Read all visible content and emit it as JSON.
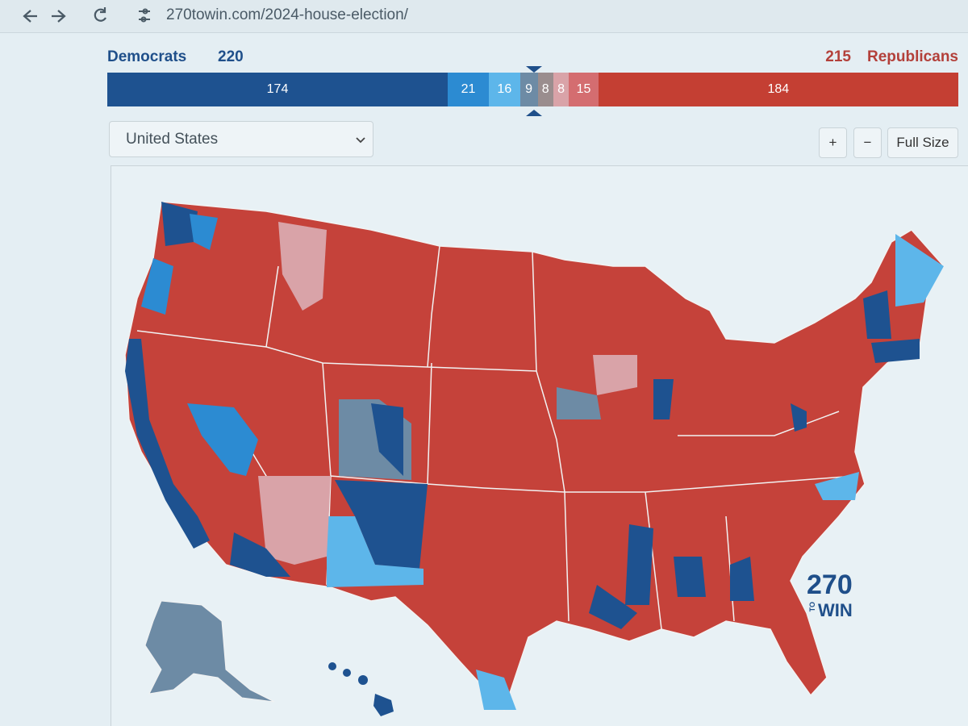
{
  "browser": {
    "url": "270towin.com/2024-house-election/"
  },
  "summary": {
    "dem_label": "Democrats",
    "dem_total": 220,
    "rep_total": 215,
    "rep_label": "Republicans",
    "bar": [
      {
        "value": 174,
        "color": "#1e5290"
      },
      {
        "value": 21,
        "color": "#2c8bd2"
      },
      {
        "value": 16,
        "color": "#5db6ea"
      },
      {
        "value": 9,
        "color": "#6d8ba5"
      },
      {
        "value": 8,
        "color": "#9a8d8e"
      },
      {
        "value": 8,
        "color": "#d9a3a8"
      },
      {
        "value": 15,
        "color": "#d46d70"
      },
      {
        "value": 184,
        "color": "#c43f33"
      }
    ]
  },
  "controls": {
    "region": "United States",
    "zoom_in": "+",
    "zoom_out": "−",
    "full_size": "Full Size"
  },
  "logo": {
    "number": "270",
    "to": "TO",
    "win": "WIN"
  }
}
